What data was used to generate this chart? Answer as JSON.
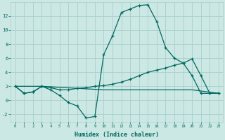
{
  "xlabel": "Humidex (Indice chaleur)",
  "bg_color": "#cce8e4",
  "grid_color": "#aaceca",
  "line_color": "#006860",
  "x_main": [
    0,
    1,
    2,
    3,
    4,
    5,
    6,
    7,
    8,
    9,
    10,
    11,
    12,
    13,
    14,
    15,
    16,
    17,
    18,
    19,
    20,
    21,
    22,
    23
  ],
  "y_main": [
    2,
    1,
    1.2,
    2,
    1.5,
    0.7,
    -0.3,
    -0.8,
    -2.5,
    -2.3,
    6.5,
    9.2,
    12.5,
    13.0,
    13.5,
    13.6,
    11.2,
    7.5,
    6.0,
    5.3,
    3.5,
    1.0,
    1.0,
    1.0
  ],
  "x_line2": [
    0,
    1,
    2,
    3,
    4,
    5,
    6,
    7,
    8,
    9,
    10,
    11,
    12,
    13,
    14,
    15,
    16,
    17,
    18,
    19,
    20,
    21,
    22,
    23
  ],
  "y_line2": [
    2,
    1,
    1.2,
    2,
    1.8,
    1.5,
    1.5,
    1.7,
    1.8,
    2.0,
    2.1,
    2.3,
    2.6,
    3.0,
    3.5,
    4.0,
    4.3,
    4.6,
    5.0,
    5.3,
    5.9,
    3.5,
    1.0,
    1.0
  ],
  "x_line3": [
    0,
    3,
    10,
    18,
    20,
    23
  ],
  "y_line3": [
    2,
    2,
    1.5,
    1.5,
    1.5,
    1.0
  ],
  "ylim": [
    -3,
    14
  ],
  "xlim": [
    -0.5,
    23.5
  ],
  "yticks": [
    -2,
    0,
    2,
    4,
    6,
    8,
    10,
    12
  ],
  "xticks": [
    0,
    1,
    2,
    3,
    4,
    5,
    6,
    7,
    8,
    9,
    10,
    11,
    12,
    13,
    14,
    15,
    16,
    17,
    18,
    19,
    20,
    21,
    22,
    23
  ]
}
